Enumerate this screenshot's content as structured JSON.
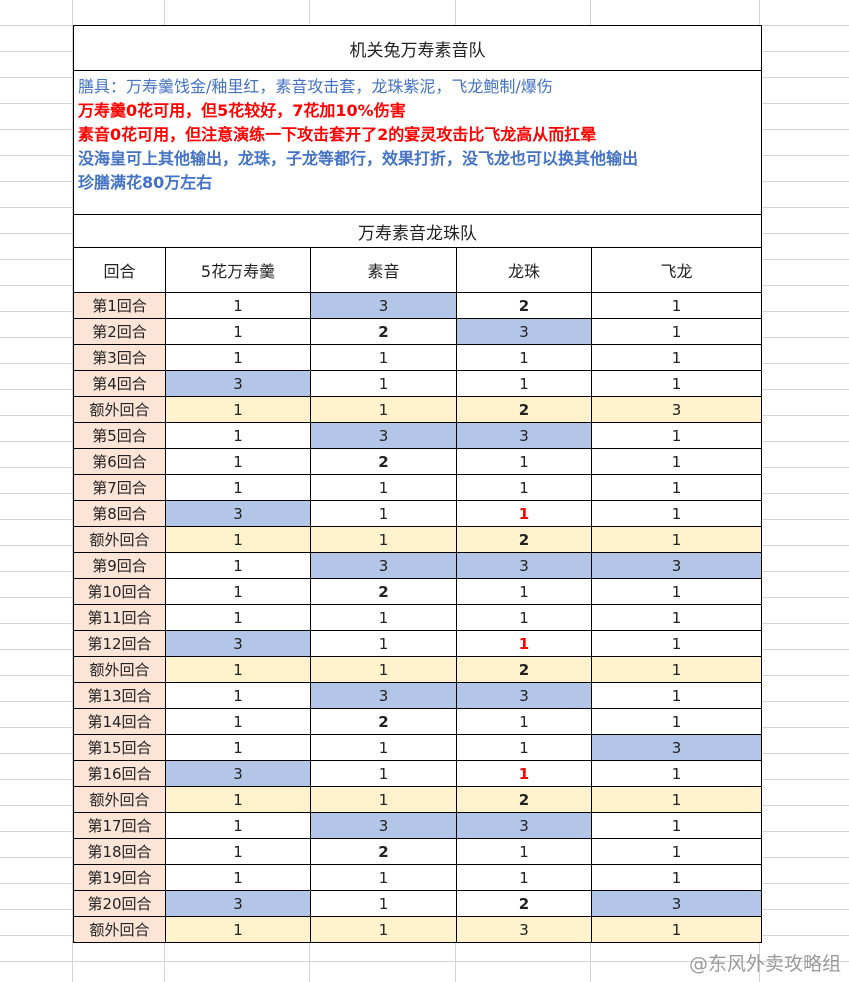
{
  "title": "机关兔万寿素音队",
  "notes": [
    {
      "text": "膳具：万寿羹饯金/釉里红，素音攻击套，龙珠紫泥，飞龙鲍制/爆伤",
      "style": "blue"
    },
    {
      "text": "万寿羹0花可用，但5花较好，7花加10%伤害",
      "style": "red"
    },
    {
      "text": "素音0花可用，但注意演练一下攻击套开了2的宴灵攻击比飞龙高从而扛晕",
      "style": "red"
    },
    {
      "text": "没海皇可上其他输出，龙珠，子龙等都行，效果打折，没飞龙也可以换其他输出",
      "style": "blue-b"
    },
    {
      "text": "珍膳满花80万左右",
      "style": "blue-b"
    }
  ],
  "subtitle": "万寿素音龙珠队",
  "headers": [
    "回合",
    "5花万寿羹",
    "素音",
    "龙珠",
    "飞龙"
  ],
  "colors": {
    "label_bg": "#fce4d6",
    "highlight_blue": "#b4c6e7",
    "extra_row_bg": "#fff2cc",
    "red": "#ff0000",
    "note_blue": "#4472c4"
  },
  "rows": [
    {
      "label": "第1回合",
      "cells": [
        {
          "v": "1"
        },
        {
          "v": "3",
          "hl": "blue"
        },
        {
          "v": "2",
          "bold": true
        },
        {
          "v": "1"
        }
      ]
    },
    {
      "label": "第2回合",
      "cells": [
        {
          "v": "1"
        },
        {
          "v": "2",
          "bold": true
        },
        {
          "v": "3",
          "hl": "blue"
        },
        {
          "v": "1"
        }
      ]
    },
    {
      "label": "第3回合",
      "cells": [
        {
          "v": "1"
        },
        {
          "v": "1"
        },
        {
          "v": "1"
        },
        {
          "v": "1"
        }
      ]
    },
    {
      "label": "第4回合",
      "cells": [
        {
          "v": "3",
          "hl": "blue"
        },
        {
          "v": "1"
        },
        {
          "v": "1"
        },
        {
          "v": "1"
        }
      ]
    },
    {
      "label": "额外回合",
      "extra": true,
      "cells": [
        {
          "v": "1"
        },
        {
          "v": "1"
        },
        {
          "v": "2",
          "bold": true
        },
        {
          "v": "3"
        }
      ]
    },
    {
      "label": "第5回合",
      "cells": [
        {
          "v": "1"
        },
        {
          "v": "3",
          "hl": "blue"
        },
        {
          "v": "3",
          "hl": "blue"
        },
        {
          "v": "1"
        }
      ]
    },
    {
      "label": "第6回合",
      "cells": [
        {
          "v": "1"
        },
        {
          "v": "2",
          "bold": true
        },
        {
          "v": "1"
        },
        {
          "v": "1"
        }
      ]
    },
    {
      "label": "第7回合",
      "cells": [
        {
          "v": "1"
        },
        {
          "v": "1"
        },
        {
          "v": "1"
        },
        {
          "v": "1"
        }
      ]
    },
    {
      "label": "第8回合",
      "cells": [
        {
          "v": "3",
          "hl": "blue"
        },
        {
          "v": "1"
        },
        {
          "v": "1",
          "red": true
        },
        {
          "v": "1"
        }
      ]
    },
    {
      "label": "额外回合",
      "extra": true,
      "cells": [
        {
          "v": "1"
        },
        {
          "v": "1"
        },
        {
          "v": "2",
          "bold": true
        },
        {
          "v": "1"
        }
      ]
    },
    {
      "label": "第9回合",
      "cells": [
        {
          "v": "1"
        },
        {
          "v": "3",
          "hl": "blue"
        },
        {
          "v": "3",
          "hl": "blue"
        },
        {
          "v": "3",
          "hl": "blue"
        }
      ]
    },
    {
      "label": "第10回合",
      "cells": [
        {
          "v": "1"
        },
        {
          "v": "2",
          "bold": true
        },
        {
          "v": "1"
        },
        {
          "v": "1"
        }
      ]
    },
    {
      "label": "第11回合",
      "cells": [
        {
          "v": "1"
        },
        {
          "v": "1"
        },
        {
          "v": "1"
        },
        {
          "v": "1"
        }
      ]
    },
    {
      "label": "第12回合",
      "cells": [
        {
          "v": "3",
          "hl": "blue"
        },
        {
          "v": "1"
        },
        {
          "v": "1",
          "red": true
        },
        {
          "v": "1"
        }
      ]
    },
    {
      "label": "额外回合",
      "extra": true,
      "cells": [
        {
          "v": "1"
        },
        {
          "v": "1"
        },
        {
          "v": "2",
          "bold": true
        },
        {
          "v": "1"
        }
      ]
    },
    {
      "label": "第13回合",
      "cells": [
        {
          "v": "1"
        },
        {
          "v": "3",
          "hl": "blue"
        },
        {
          "v": "3",
          "hl": "blue"
        },
        {
          "v": "1"
        }
      ]
    },
    {
      "label": "第14回合",
      "cells": [
        {
          "v": "1"
        },
        {
          "v": "2",
          "bold": true
        },
        {
          "v": "1"
        },
        {
          "v": "1"
        }
      ]
    },
    {
      "label": "第15回合",
      "cells": [
        {
          "v": "1"
        },
        {
          "v": "1"
        },
        {
          "v": "1"
        },
        {
          "v": "3",
          "hl": "blue"
        }
      ]
    },
    {
      "label": "第16回合",
      "cells": [
        {
          "v": "3",
          "hl": "blue"
        },
        {
          "v": "1"
        },
        {
          "v": "1",
          "red": true
        },
        {
          "v": "1"
        }
      ]
    },
    {
      "label": "额外回合",
      "extra": true,
      "cells": [
        {
          "v": "1"
        },
        {
          "v": "1"
        },
        {
          "v": "2",
          "bold": true
        },
        {
          "v": "1"
        }
      ]
    },
    {
      "label": "第17回合",
      "cells": [
        {
          "v": "1"
        },
        {
          "v": "3",
          "hl": "blue"
        },
        {
          "v": "3",
          "hl": "blue"
        },
        {
          "v": "1"
        }
      ]
    },
    {
      "label": "第18回合",
      "cells": [
        {
          "v": "1"
        },
        {
          "v": "2",
          "bold": true
        },
        {
          "v": "1"
        },
        {
          "v": "1"
        }
      ]
    },
    {
      "label": "第19回合",
      "cells": [
        {
          "v": "1"
        },
        {
          "v": "1"
        },
        {
          "v": "1"
        },
        {
          "v": "1"
        }
      ]
    },
    {
      "label": "第20回合",
      "cells": [
        {
          "v": "3",
          "hl": "blue"
        },
        {
          "v": "1"
        },
        {
          "v": "2",
          "bold": true
        },
        {
          "v": "3",
          "hl": "blue"
        }
      ]
    },
    {
      "label": "额外回合",
      "extra": true,
      "cells": [
        {
          "v": "1"
        },
        {
          "v": "1"
        },
        {
          "v": "3"
        },
        {
          "v": "1"
        }
      ]
    }
  ],
  "watermark": "@东风外卖攻略组"
}
